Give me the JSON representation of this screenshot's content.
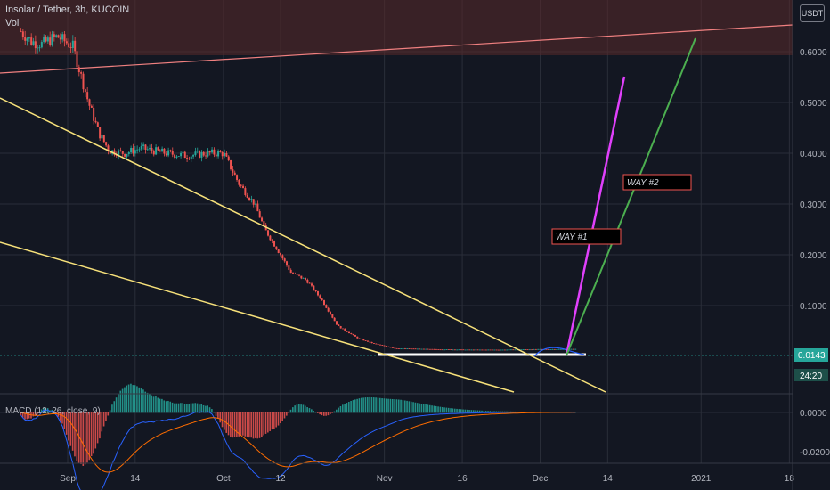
{
  "header": {
    "symbol_line": "Insolar / Tether, 3h, KUCOIN",
    "volume_label": "Vol",
    "unit_badge": "USDT"
  },
  "price_badge": {
    "value": "0.0143",
    "countdown": "24:20"
  },
  "annotations": {
    "way1": "WAY #1",
    "way2": "WAY #2"
  },
  "macd_label": "MACD (12, 26, close, 9)",
  "colors": {
    "background": "#131722",
    "up": "#26a69a",
    "down": "#ef5350",
    "trendline": "#f7e17a",
    "way1": "#e040fb",
    "way2": "#4caf50",
    "resistance": "#f08080",
    "macd": "#2962ff",
    "signal": "#ff6d00",
    "price_badge": "#26a69a"
  },
  "chart_data": {
    "type": "line",
    "x_ticks": [
      "Sep",
      "14",
      "Oct",
      "12",
      "Nov",
      "16",
      "Dec",
      "14",
      "2021",
      "18"
    ],
    "y_ticks": [
      "0.6000",
      "0.5000",
      "0.4000",
      "0.3000",
      "0.2000",
      "0.1000"
    ],
    "macd_y_ticks": [
      "0.0000",
      "-0.0200"
    ],
    "ylim": [
      0.0,
      0.69
    ],
    "last_price": 0.0143,
    "series": [
      {
        "values": [
          [
            "Aug 23",
            0.64
          ],
          [
            "Aug 25",
            0.62
          ],
          [
            "Aug 27",
            0.615
          ],
          [
            "Aug 30",
            0.63
          ],
          [
            "Sep 2",
            0.61
          ],
          [
            "Sep 5",
            0.5
          ],
          [
            "Sep 7",
            0.44
          ],
          [
            "Sep 9",
            0.405
          ],
          [
            "Sep 12",
            0.4
          ],
          [
            "Sep 15",
            0.41
          ],
          [
            "Sep 20",
            0.4
          ],
          [
            "Sep 24",
            0.395
          ],
          [
            "Sep 28",
            0.4
          ],
          [
            "Oct 1",
            0.4
          ],
          [
            "Oct 4",
            0.34
          ],
          [
            "Oct 7",
            0.3
          ],
          [
            "Oct 9",
            0.25
          ],
          [
            "Oct 12",
            0.2
          ],
          [
            "Oct 14",
            0.165
          ],
          [
            "Oct 17",
            0.15
          ],
          [
            "Oct 20",
            0.11
          ],
          [
            "Oct 23",
            0.06
          ],
          [
            "Oct 27",
            0.035
          ],
          [
            "Oct 30",
            0.025
          ],
          [
            "Nov 3",
            0.016
          ],
          [
            "Nov 10",
            0.014
          ],
          [
            "Nov 17",
            0.013
          ],
          [
            "Nov 24",
            0.013
          ],
          [
            "Dec 1",
            0.014
          ],
          [
            "Dec 8",
            0.0143
          ]
        ]
      }
    ]
  }
}
